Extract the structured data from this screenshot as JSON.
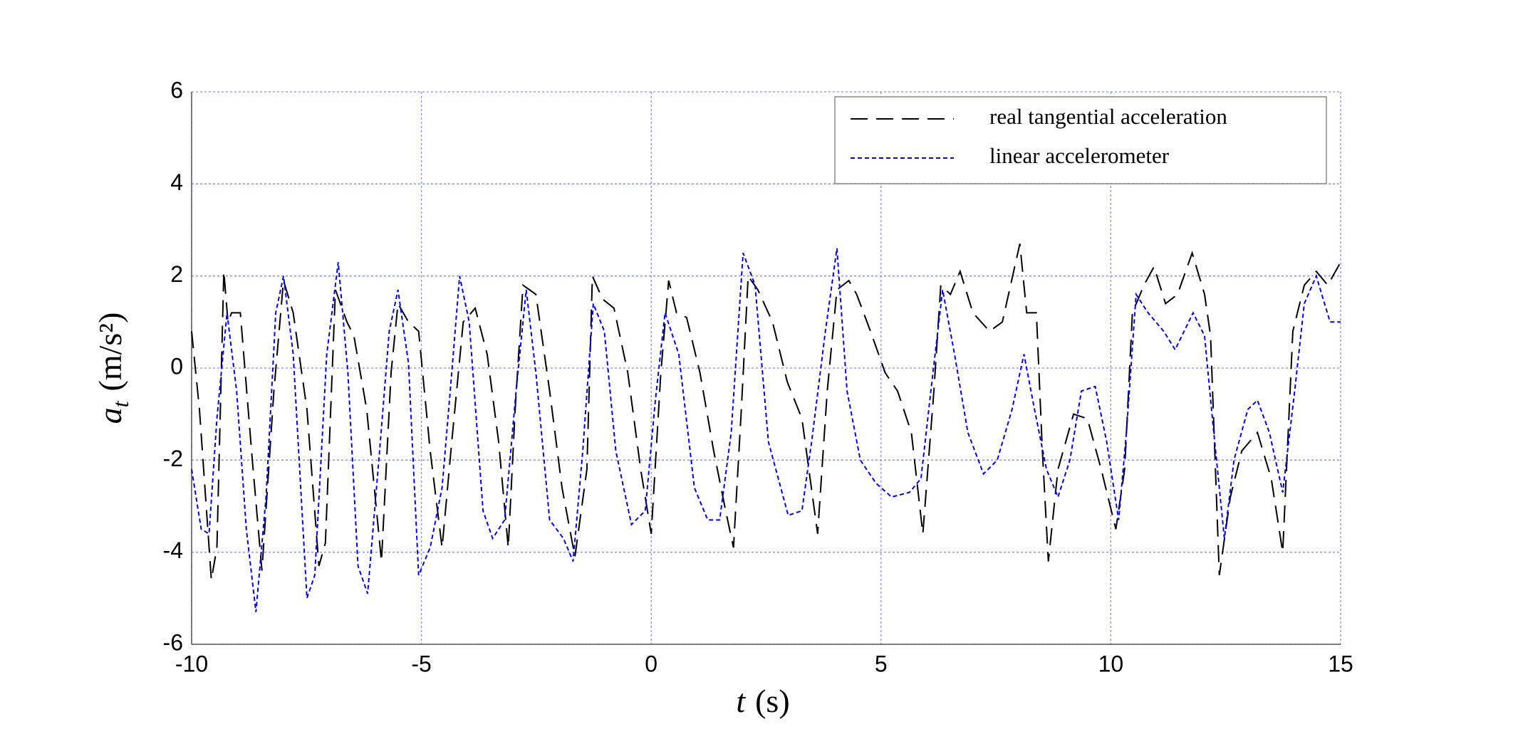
{
  "chart_data": {
    "type": "line",
    "xlabel": {
      "symbol": "t",
      "unit": "(s)"
    },
    "ylabel": {
      "symbol": "a",
      "subscript": "t",
      "unit": "(m/s²)"
    },
    "xlim": [
      -10,
      15
    ],
    "xticks": [
      -10,
      -5,
      0,
      5,
      10,
      15
    ],
    "ylim": [
      -6,
      6
    ],
    "yticks": [
      -6,
      -4,
      -2,
      0,
      2,
      4,
      6
    ],
    "grid": true,
    "legend": "upper right",
    "series": [
      {
        "name": "real tangential acceleration",
        "color": "#000000",
        "style": "dashed",
        "x": [
          -10,
          -9.83,
          -9.57,
          -9.45,
          -9.3,
          -9.21,
          -9.13,
          -8.94,
          -8.68,
          -8.47,
          -8.21,
          -8.0,
          -7.79,
          -7.49,
          -7.23,
          -7.09,
          -6.87,
          -6.62,
          -6.47,
          -6.19,
          -5.87,
          -5.66,
          -5.51,
          -5.28,
          -5.06,
          -4.81,
          -4.55,
          -4.34,
          -4.09,
          -3.83,
          -3.57,
          -3.32,
          -3.11,
          -2.96,
          -2.79,
          -2.51,
          -2.21,
          -1.94,
          -1.66,
          -1.4,
          -1.28,
          -1.06,
          -0.81,
          -0.51,
          -0.23,
          0.0,
          0.21,
          0.38,
          0.55,
          0.77,
          1.06,
          1.36,
          1.62,
          1.79,
          1.96,
          2.11,
          2.32,
          2.64,
          2.96,
          3.28,
          3.62,
          3.83,
          4.04,
          4.3,
          4.47,
          4.77,
          5.09,
          5.36,
          5.66,
          5.91,
          6.15,
          6.3,
          6.51,
          6.72,
          7.0,
          7.36,
          7.64,
          8.02,
          8.17,
          8.38,
          8.51,
          8.64,
          8.85,
          9.19,
          9.49,
          9.79,
          10.11,
          10.3,
          10.47,
          10.72,
          10.94,
          11.19,
          11.45,
          11.77,
          12.04,
          12.17,
          12.36,
          12.6,
          12.85,
          13.19,
          13.49,
          13.74,
          13.96,
          14.21,
          14.47,
          14.72,
          15.0
        ],
        "values": [
          0.8,
          -0.9,
          -4.6,
          -3.9,
          2.1,
          1.0,
          1.2,
          1.2,
          -2.0,
          -4.4,
          -0.5,
          1.9,
          1.2,
          -0.9,
          -4.3,
          -3.8,
          1.7,
          1.0,
          0.7,
          -0.9,
          -4.2,
          -0.1,
          1.4,
          1.0,
          0.8,
          -1.8,
          -3.9,
          -1.6,
          1.0,
          1.3,
          0.3,
          -1.6,
          -3.9,
          -0.9,
          1.8,
          1.6,
          -0.5,
          -2.6,
          -4.1,
          -2.2,
          2.0,
          1.5,
          1.3,
          -0.1,
          -2.2,
          -3.6,
          -0.1,
          1.9,
          1.2,
          1.1,
          -0.1,
          -1.8,
          -3.1,
          -3.9,
          -0.9,
          2.0,
          1.7,
          1.0,
          -0.3,
          -1.1,
          -3.6,
          -0.5,
          1.7,
          1.9,
          1.6,
          0.8,
          -0.1,
          -0.5,
          -1.4,
          -3.6,
          -0.5,
          1.8,
          1.6,
          2.1,
          1.2,
          0.8,
          1.0,
          2.7,
          1.2,
          1.2,
          -1.8,
          -4.2,
          -2.2,
          -1.0,
          -1.1,
          -2.2,
          -3.5,
          -2.2,
          1.2,
          1.8,
          2.2,
          1.4,
          1.6,
          2.5,
          1.6,
          0.7,
          -4.5,
          -2.8,
          -1.8,
          -1.4,
          -2.4,
          -4.0,
          0.8,
          1.8,
          2.1,
          1.8,
          2.3
        ]
      },
      {
        "name": "linear accelerometer",
        "color": "#0000ff",
        "style": "dotted",
        "x": [
          -10,
          -9.79,
          -9.62,
          -9.45,
          -9.23,
          -9.02,
          -8.81,
          -8.6,
          -8.38,
          -8.17,
          -8.0,
          -7.79,
          -7.49,
          -7.32,
          -7.06,
          -6.81,
          -6.6,
          -6.38,
          -6.17,
          -5.91,
          -5.7,
          -5.51,
          -5.28,
          -5.06,
          -4.81,
          -4.55,
          -4.34,
          -4.17,
          -3.96,
          -3.66,
          -3.45,
          -3.19,
          -2.94,
          -2.72,
          -2.51,
          -2.21,
          -1.91,
          -1.7,
          -1.49,
          -1.26,
          -1.02,
          -0.77,
          -0.43,
          -0.13,
          0.09,
          0.3,
          0.6,
          0.94,
          1.23,
          1.49,
          1.74,
          2.0,
          2.26,
          2.55,
          2.98,
          3.28,
          3.49,
          3.79,
          4.04,
          4.26,
          4.55,
          4.89,
          5.23,
          5.62,
          5.87,
          6.13,
          6.34,
          6.6,
          6.89,
          7.23,
          7.53,
          7.85,
          8.11,
          8.34,
          8.6,
          8.85,
          9.11,
          9.36,
          9.66,
          9.91,
          10.17,
          10.34,
          10.55,
          10.81,
          11.15,
          11.4,
          11.79,
          12.04,
          12.21,
          12.47,
          12.68,
          12.98,
          13.19,
          13.45,
          13.74,
          14.0,
          14.21,
          14.47,
          14.77,
          15.0
        ],
        "values": [
          -2.2,
          -3.5,
          -3.6,
          -1.1,
          1.2,
          -0.5,
          -3.5,
          -5.3,
          -2.8,
          1.2,
          2.0,
          0.3,
          -5.0,
          -4.5,
          0.3,
          2.3,
          -0.1,
          -4.3,
          -4.9,
          -1.8,
          0.8,
          1.7,
          0.1,
          -4.5,
          -3.9,
          -2.6,
          -0.1,
          2.0,
          1.0,
          -3.1,
          -3.7,
          -3.3,
          -0.5,
          1.7,
          -0.1,
          -3.3,
          -3.7,
          -4.2,
          -1.8,
          1.4,
          0.8,
          -1.8,
          -3.4,
          -3.1,
          -0.7,
          1.2,
          0.3,
          -2.6,
          -3.3,
          -3.3,
          -1.4,
          2.5,
          1.8,
          -1.6,
          -3.2,
          -3.1,
          -1.6,
          0.8,
          2.6,
          -0.5,
          -2.0,
          -2.5,
          -2.8,
          -2.7,
          -2.4,
          -0.1,
          1.7,
          0.3,
          -1.4,
          -2.3,
          -2.0,
          -0.9,
          0.3,
          -0.9,
          -2.2,
          -2.8,
          -2.0,
          -0.5,
          -0.4,
          -1.6,
          -3.3,
          -1.4,
          1.6,
          1.2,
          0.8,
          0.4,
          1.2,
          0.7,
          -1.1,
          -3.7,
          -2.0,
          -0.9,
          -0.7,
          -1.4,
          -2.7,
          -0.5,
          1.4,
          2.0,
          1.0,
          1.0
        ]
      }
    ]
  }
}
